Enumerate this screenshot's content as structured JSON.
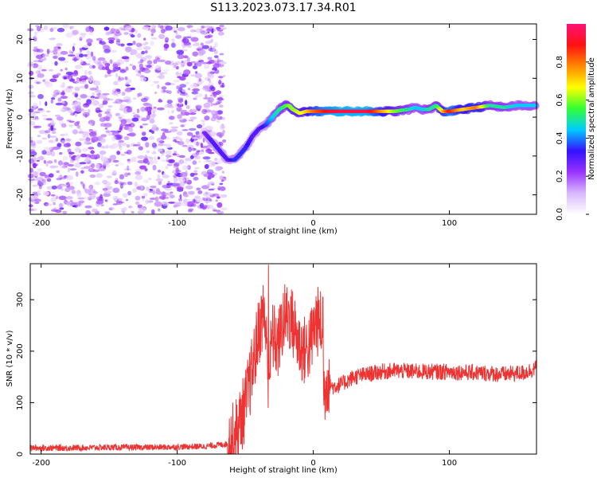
{
  "title": "S113.2023.073.17.34.R01",
  "chart_data": [
    {
      "type": "heatmap",
      "xlabel": "Height of straight line (km)",
      "ylabel": "Frequency (Hz)",
      "xlim": [
        -208,
        164
      ],
      "ylim": [
        -25,
        24
      ],
      "xticks": [
        -200,
        -100,
        0,
        100
      ],
      "yticks": [
        -20,
        -10,
        0,
        10,
        20
      ],
      "colorbar": {
        "label": "Normalized spectral amplitude",
        "range": [
          0,
          1
        ],
        "ticks": [
          "0.0",
          "0.2",
          "0.4",
          "0.6",
          "0.8"
        ],
        "tick_values": [
          0,
          0.2,
          0.4,
          0.6,
          0.8
        ],
        "colormap": [
          "#ffffff",
          "#d9b8ff",
          "#9933ff",
          "#3311ff",
          "#00ccff",
          "#33ff33",
          "#ffff00",
          "#ff8800",
          "#ff1111",
          "#ff1177"
        ]
      },
      "ridge": {
        "x": [
          -80,
          -75,
          -68,
          -63,
          -58,
          -55,
          -50,
          -45,
          -40,
          -35,
          -30,
          -25,
          -20,
          -18,
          -15,
          -10,
          -5,
          0,
          10,
          20,
          40,
          60,
          70,
          75,
          80,
          85,
          90,
          95,
          100,
          110,
          120,
          130,
          140,
          150,
          155,
          160,
          164
        ],
        "y": [
          -4,
          -6,
          -9,
          -11,
          -11,
          -10,
          -8,
          -5,
          -3,
          -2,
          0,
          2,
          3,
          3,
          2,
          1,
          1.5,
          1.5,
          1.5,
          1.5,
          1.5,
          1.5,
          2,
          2.5,
          2,
          2,
          3,
          1.5,
          1.5,
          2,
          2.5,
          3,
          2.5,
          3,
          3,
          3,
          3
        ],
        "amplitude": [
          0.25,
          0.3,
          0.3,
          0.3,
          0.35,
          0.35,
          0.35,
          0.3,
          0.3,
          0.35,
          0.45,
          0.5,
          0.55,
          0.6,
          0.6,
          0.65,
          0.7,
          0.8,
          0.9,
          0.95,
          0.95,
          0.6,
          0.5,
          0.45,
          0.45,
          0.5,
          0.5,
          0.7,
          0.9,
          0.7,
          0.8,
          0.5,
          0.5,
          0.45,
          0.45,
          0.45,
          0.45
        ]
      },
      "noise_region_x": [
        -208,
        -63
      ],
      "noise_amplitude": 0.12
    },
    {
      "type": "line",
      "xlabel": "Height of straight line (km)",
      "ylabel": "SNR (10 * v/v)",
      "xlim": [
        -208,
        164
      ],
      "ylim": [
        0,
        370
      ],
      "xticks": [
        -200,
        -100,
        0,
        100
      ],
      "yticks": [
        0,
        100,
        200,
        300
      ],
      "color": "#ee3333",
      "x": [
        -208,
        -180,
        -150,
        -120,
        -100,
        -80,
        -62,
        -56,
        -50,
        -45,
        -40,
        -36,
        -33,
        -30,
        -26,
        -22,
        -18,
        -14,
        -10,
        -6,
        -2,
        2,
        6,
        8,
        10,
        14,
        20,
        30,
        40,
        50,
        60,
        80,
        100,
        120,
        140,
        155,
        164
      ],
      "y": [
        12,
        12,
        13,
        13,
        14,
        15,
        20,
        45,
        95,
        160,
        240,
        280,
        150,
        230,
        210,
        260,
        270,
        245,
        210,
        200,
        215,
        260,
        250,
        120,
        150,
        130,
        135,
        150,
        155,
        160,
        162,
        160,
        160,
        158,
        155,
        158,
        168
      ],
      "peaks": [
        {
          "x": -33,
          "y": 368
        },
        {
          "x": 7,
          "y": 305
        }
      ]
    }
  ]
}
